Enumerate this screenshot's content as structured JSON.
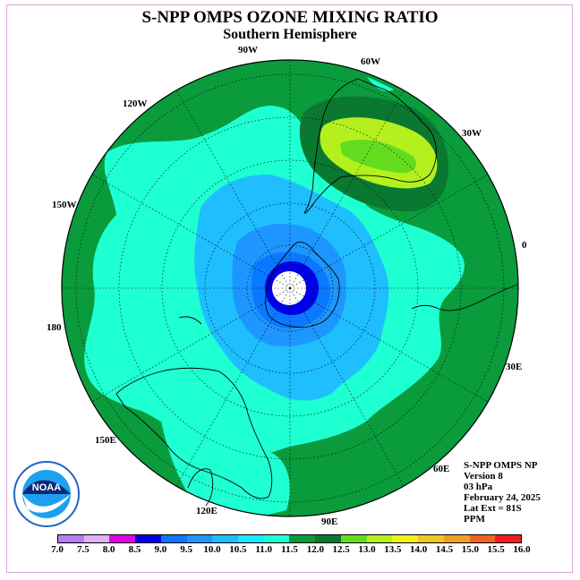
{
  "title": "S-NPP OMPS OZONE MIXING RATIO",
  "subtitle": "Southern Hemisphere",
  "longitude_labels": [
    "90W",
    "60W",
    "30W",
    "0",
    "30E",
    "60E",
    "90E",
    "120E",
    "150E",
    "180",
    "150W",
    "120W"
  ],
  "info": {
    "line1": "S-NPP OMPS NP",
    "line2": "Version 8",
    "line3": "03 hPa",
    "line4": "February 24, 2025",
    "line5": "Lat Ext = 81S",
    "line6": "PPM"
  },
  "colorbar": {
    "ticks": [
      "7.0",
      "7.5",
      "8.0",
      "8.5",
      "9.0",
      "9.5",
      "10.0",
      "10.5",
      "11.0",
      "11.5",
      "12.0",
      "12.5",
      "13.0",
      "13.5",
      "14.0",
      "14.5",
      "15.0",
      "15.5",
      "16.0"
    ],
    "colors": [
      "#b27ff0",
      "#e0b0f0",
      "#e600e6",
      "#0000e6",
      "#0a78ff",
      "#1e96ff",
      "#1ebeff",
      "#1ee6ff",
      "#1effd2",
      "#0a9b3c",
      "#0a7830",
      "#64dc1e",
      "#b4f01e",
      "#f0f01e",
      "#f0c81e",
      "#f0a01e",
      "#f0641e",
      "#f01e1e",
      "#8c5a3c"
    ]
  },
  "colors": {
    "dark_green": "#0a9b3c",
    "darker_green": "#0a7830",
    "aqua": "#1effd2",
    "light_blue": "#1ebeff",
    "mid_blue": "#1e96ff",
    "blue": "#0a78ff",
    "deep_blue": "#0000e6",
    "lime": "#b4f01e",
    "yellow_green": "#64dc1e"
  },
  "logo_text": "NOAA"
}
